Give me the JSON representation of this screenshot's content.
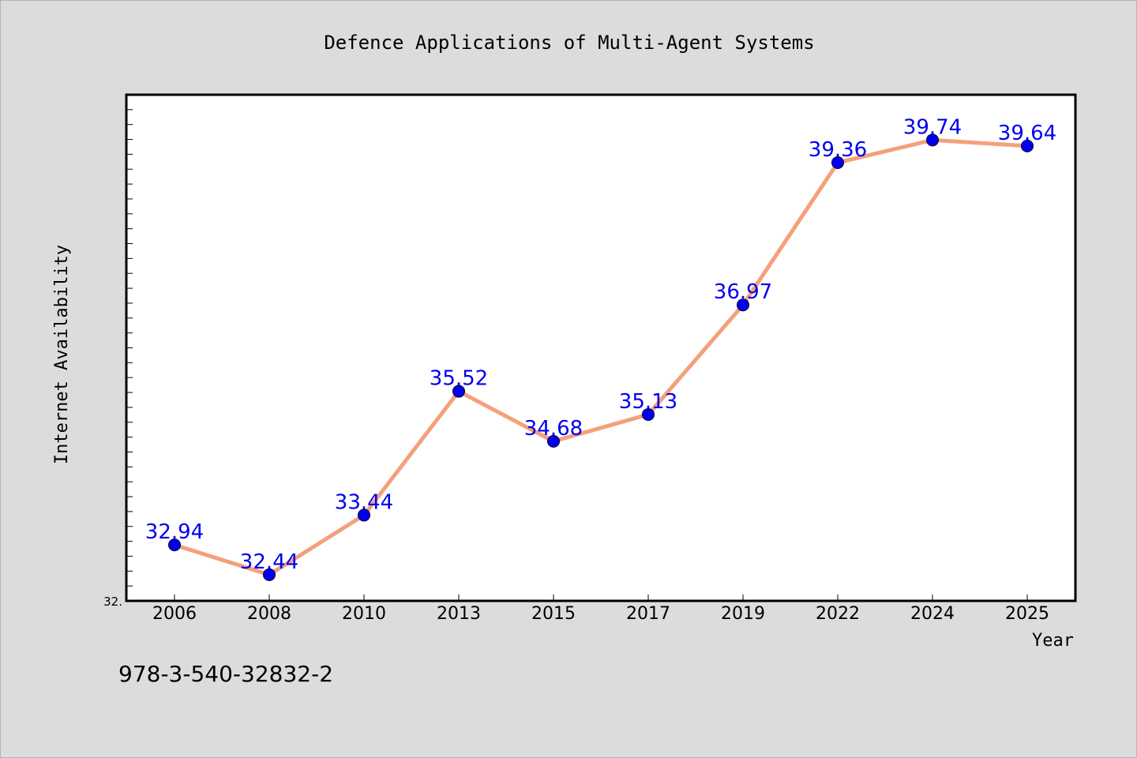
{
  "chart_data": {
    "type": "line",
    "title": "Defence Applications of Multi-Agent Systems",
    "xlabel": "Year",
    "ylabel": "Internet Availability",
    "categories": [
      "2006",
      "2008",
      "2010",
      "2013",
      "2015",
      "2017",
      "2019",
      "2022",
      "2024",
      "2025"
    ],
    "series": [
      {
        "values": [
          32.94,
          32.44,
          33.44,
          35.52,
          34.68,
          35.13,
          36.97,
          39.36,
          39.74,
          39.64
        ]
      }
    ],
    "data_labels": [
      "32.94",
      "32.44",
      "33.44",
      "35.52",
      "34.68",
      "35.13",
      "36.97",
      "39.36",
      "39.74",
      "39.64"
    ],
    "y_tick_label": "32.",
    "ylim": [
      32.0,
      40.5
    ],
    "grid": false,
    "legend": "none",
    "line_color": "#f4a07c",
    "marker_color": "#0000ee",
    "label_color": "#0000ee"
  },
  "footer_text": "978-3-540-32832-2"
}
